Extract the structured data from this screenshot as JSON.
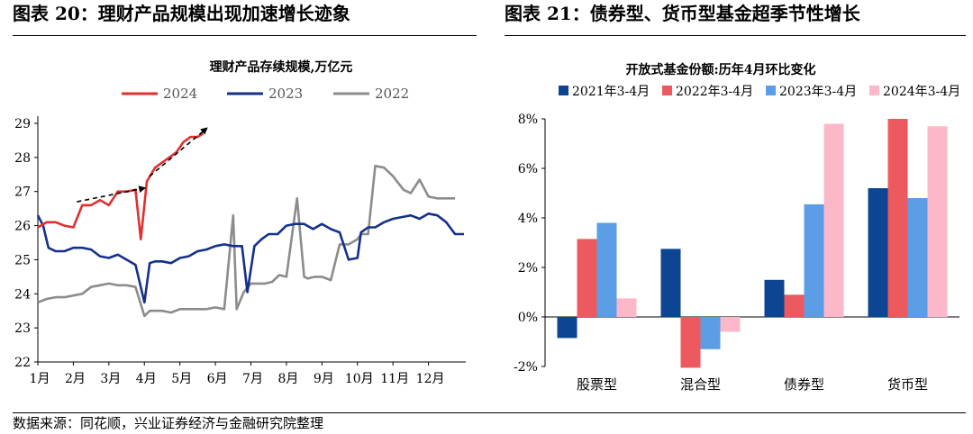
{
  "figure_left": {
    "heading": "图表 20：理财产品规模出现加速增长迹象"
  },
  "figure_right": {
    "heading": "图表 21：债券型、货币型基金超季节性增长"
  },
  "source": "数据来源：同花顺，兴业证券经济与金融研究院整理",
  "chart_data": [
    {
      "type": "line",
      "title": "理财产品存续规模,万亿元",
      "xlabel": "",
      "ylabel": "",
      "x_tick_labels": [
        "1月",
        "2月",
        "3月",
        "4月",
        "5月",
        "6月",
        "7月",
        "8月",
        "9月",
        "10月",
        "11月",
        "12月"
      ],
      "y_tick_labels": [
        "22",
        "23",
        "24",
        "25",
        "26",
        "27",
        "28",
        "29"
      ],
      "xlim": [
        1,
        13
      ],
      "ylim": [
        22,
        29
      ],
      "grid": false,
      "legend": "top",
      "annotations": "dashed arrows along 2024 series indicating acceleration",
      "colors": {
        "2024": "#e03030",
        "2023": "#14308a",
        "2022": "#8c8c8c"
      },
      "series": [
        {
          "name": "2024",
          "x": [
            1,
            1.25,
            1.5,
            1.75,
            2,
            2.25,
            2.5,
            2.75,
            3,
            3.25,
            3.5,
            3.75,
            3.9,
            4.07,
            4.3,
            4.5,
            4.7,
            4.9,
            5.1,
            5.3,
            5.5,
            5.65
          ],
          "values": [
            25.95,
            26.1,
            26.1,
            26.0,
            25.95,
            26.6,
            26.6,
            26.75,
            26.6,
            27.0,
            27.0,
            27.05,
            25.6,
            27.3,
            27.7,
            27.85,
            28.0,
            28.15,
            28.45,
            28.6,
            28.6,
            28.7
          ]
        },
        {
          "name": "2023",
          "x": [
            1,
            1.15,
            1.3,
            1.5,
            1.75,
            2,
            2.25,
            2.5,
            2.75,
            3,
            3.25,
            3.5,
            3.75,
            4,
            4.15,
            4.3,
            4.5,
            4.75,
            5,
            5.25,
            5.5,
            5.75,
            6,
            6.25,
            6.5,
            6.75,
            6.9,
            7.1,
            7.3,
            7.5,
            7.75,
            8,
            8.25,
            8.5,
            8.75,
            9,
            9.25,
            9.5,
            9.75,
            10,
            10.1,
            10.3,
            10.5,
            10.75,
            11,
            11.25,
            11.5,
            11.75,
            12,
            12.25,
            12.5,
            12.75,
            13
          ],
          "values": [
            26.3,
            26.0,
            25.35,
            25.25,
            25.25,
            25.35,
            25.35,
            25.3,
            25.1,
            25.05,
            25.15,
            25.0,
            24.85,
            23.75,
            24.9,
            24.95,
            24.95,
            24.9,
            25.05,
            25.1,
            25.25,
            25.3,
            25.4,
            25.45,
            25.4,
            25.4,
            24.05,
            25.4,
            25.6,
            25.75,
            25.75,
            26.0,
            26.05,
            26.05,
            25.9,
            26.05,
            25.9,
            25.8,
            25.0,
            25.05,
            25.8,
            25.95,
            25.95,
            26.1,
            26.2,
            26.25,
            26.3,
            26.2,
            26.35,
            26.3,
            26.1,
            25.75,
            25.75
          ]
        },
        {
          "name": "2022",
          "x": [
            1,
            1.25,
            1.5,
            1.75,
            2,
            2.25,
            2.5,
            2.75,
            3,
            3.25,
            3.5,
            3.75,
            4,
            4.15,
            4.3,
            4.5,
            4.75,
            5,
            5.25,
            5.5,
            5.75,
            6,
            6.25,
            6.5,
            6.6,
            6.8,
            7,
            7.2,
            7.4,
            7.6,
            7.8,
            8,
            8.3,
            8.5,
            8.6,
            8.8,
            9,
            9.25,
            9.5,
            9.75,
            10,
            10.1,
            10.3,
            10.5,
            10.75,
            11,
            11.15,
            11.3,
            11.5,
            11.75,
            12,
            12.25,
            12.5,
            12.75
          ],
          "values": [
            23.75,
            23.85,
            23.9,
            23.9,
            23.95,
            24.0,
            24.2,
            24.25,
            24.3,
            24.25,
            24.25,
            24.2,
            23.35,
            23.5,
            23.5,
            23.5,
            23.45,
            23.55,
            23.55,
            23.55,
            23.55,
            23.6,
            23.55,
            26.3,
            23.55,
            24.05,
            24.3,
            24.3,
            24.3,
            24.35,
            24.55,
            24.5,
            26.8,
            24.5,
            24.45,
            24.5,
            24.5,
            24.4,
            25.45,
            25.45,
            25.6,
            25.75,
            25.75,
            27.75,
            27.7,
            27.45,
            27.25,
            27.05,
            26.95,
            27.35,
            26.85,
            26.8,
            26.8,
            26.8
          ]
        }
      ]
    },
    {
      "type": "bar",
      "title": "开放式基金份额:历年4月环比变化",
      "xlabel": "",
      "ylabel": "",
      "categories": [
        "股票型",
        "混合型",
        "债券型",
        "货币型"
      ],
      "y_tick_labels": [
        "-2%",
        "0%",
        "2%",
        "4%",
        "6%",
        "8%"
      ],
      "ylim": [
        -2,
        8
      ],
      "value_unit": "%",
      "grid": false,
      "legend": "top",
      "series": [
        {
          "name": "2021年3-4月",
          "color": "#0d4592",
          "values": [
            -0.85,
            2.75,
            1.5,
            5.2
          ]
        },
        {
          "name": "2022年3-4月",
          "color": "#ec5a5f",
          "values": [
            3.15,
            -2.05,
            0.9,
            8.0
          ]
        },
        {
          "name": "2023年3-4月",
          "color": "#5b9ee6",
          "values": [
            3.8,
            -1.3,
            4.55,
            4.8
          ]
        },
        {
          "name": "2024年3-4月",
          "color": "#fcb8c8",
          "values": [
            0.75,
            -0.6,
            7.8,
            7.7
          ]
        }
      ]
    }
  ]
}
